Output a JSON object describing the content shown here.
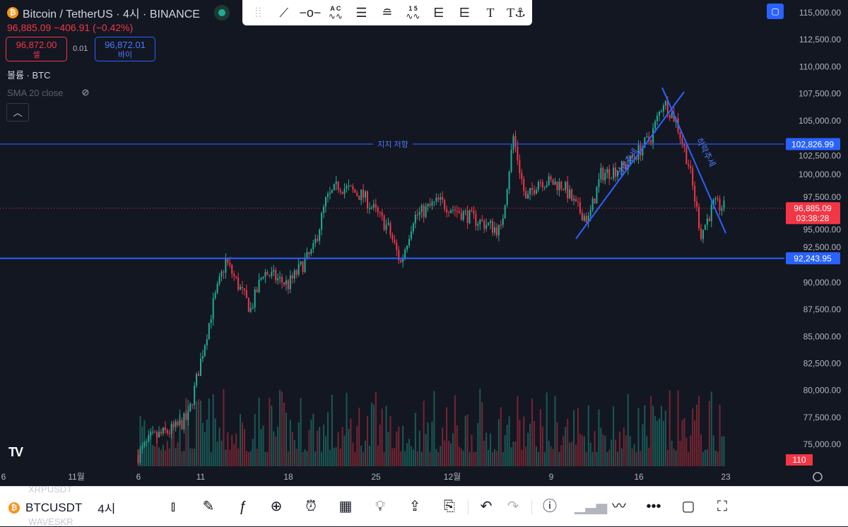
{
  "header": {
    "title": "Bitcoin / TetherUS · 4시 · BINANCE",
    "price_change": "96,885.09  −406.91 (−0.42%)",
    "sell_price": "96,872.00",
    "sell_label": "셀",
    "spread": "0.01",
    "buy_price": "96,872.01",
    "buy_label": "바이",
    "volume_indicator": "볼륨 · BTC",
    "sma_indicator": "SMA 20 close",
    "collapse_icon": "chevron-up-icon"
  },
  "drawing_toolbar": {
    "icons": [
      "drag-handle-icon",
      "trend-line-icon",
      "horizontal-ray-icon",
      "abcd-pattern-icon",
      "parallel-channel-icon",
      "pitchfork-icon",
      "elliott-wave-icon",
      "fib-retracement-icon",
      "fib-extension-icon",
      "text-icon",
      "anchored-text-icon"
    ],
    "labels": {
      "abcd": "A C",
      "wave": "1 5",
      "text": "T"
    }
  },
  "colors": {
    "up": "#22ab94",
    "down": "#f23645",
    "drawing": "#2962ff",
    "background": "#131722"
  },
  "price_axis": {
    "ticks": [
      "115,000.00",
      "112,500.00",
      "110,000.00",
      "107,500.00",
      "105,000.00",
      "102,500.00",
      "100,000.00",
      "97,500.00",
      "95,000.00",
      "92,500.00",
      "90,000.00",
      "87,500.00",
      "85,000.00",
      "82,500.00",
      "80,000.00",
      "77,500.00",
      "75,000.00"
    ],
    "resistance_label": "102,826.99",
    "support_label": "92,243.95",
    "last_price": "96,885.09",
    "countdown": "03:38:28",
    "volume_label": "110"
  },
  "time_axis": {
    "ticks": [
      "6",
      "11월",
      "6",
      "11",
      "18",
      "25",
      "12월",
      "9",
      "16",
      "23"
    ]
  },
  "drawings": {
    "resistance_text": "지지 저항",
    "uptrend_text": "상승추세",
    "downtrend_text": "하락추세"
  },
  "chart_data": {
    "type": "candlestick",
    "symbol": "BTCUSDT",
    "interval": "4시",
    "price_range": [
      73000,
      115000
    ],
    "close_path": [
      [
        "11/6",
        74000
      ],
      [
        "11/7",
        75500
      ],
      [
        "11/9",
        76500
      ],
      [
        "11/10",
        77500
      ],
      [
        "11/12",
        88000
      ],
      [
        "11/13",
        92000
      ],
      [
        "11/15",
        87500
      ],
      [
        "11/16",
        91000
      ],
      [
        "11/18",
        89800
      ],
      [
        "11/20",
        93000
      ],
      [
        "11/21",
        97500
      ],
      [
        "11/22",
        99000
      ],
      [
        "11/24",
        98000
      ],
      [
        "11/26",
        95000
      ],
      [
        "11/27",
        91800
      ],
      [
        "11/28",
        96000
      ],
      [
        "11/30",
        97500
      ],
      [
        "12/2",
        95800
      ],
      [
        "12/4",
        94800
      ],
      [
        "12/5",
        103500
      ],
      [
        "12/6",
        97500
      ],
      [
        "12/7",
        99500
      ],
      [
        "12/9",
        99000
      ],
      [
        "12/10",
        97000
      ],
      [
        "12/11",
        95800
      ],
      [
        "12/12",
        100000
      ],
      [
        "12/14",
        100800
      ],
      [
        "12/16",
        103500
      ],
      [
        "12/17",
        106800
      ],
      [
        "12/18",
        105000
      ],
      [
        "12/19",
        101000
      ],
      [
        "12/20",
        94500
      ],
      [
        "12/21",
        97200
      ],
      [
        "12/22",
        96885.09
      ]
    ],
    "levels": {
      "resistance": 102826.99,
      "support": 92243.95
    }
  },
  "bottom_bar": {
    "symbol": "BTCUSDT",
    "interval": "4시",
    "ghost_above": "XRPUSDT",
    "ghost_below": "WAVESKR"
  }
}
